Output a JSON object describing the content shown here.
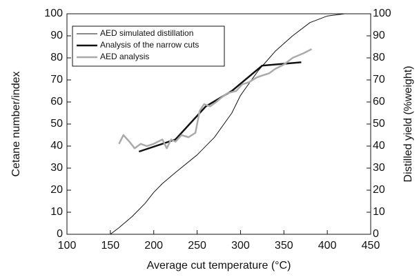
{
  "chart_data": {
    "type": "line",
    "xlabel": "Average cut temperature (°C)",
    "ylabel": "Cetane number/index",
    "y2label": "Distilled yield (%weight)",
    "xlim": [
      100,
      450
    ],
    "xticks": [
      100,
      150,
      200,
      250,
      300,
      350,
      400,
      450
    ],
    "ylim": [
      0,
      100
    ],
    "yticks": [
      0,
      10,
      20,
      30,
      40,
      50,
      60,
      70,
      80,
      90,
      100
    ],
    "y2lim": [
      0,
      100
    ],
    "y2ticks": [
      0,
      10,
      20,
      30,
      40,
      50,
      60,
      70,
      80,
      90,
      100
    ],
    "legend": "upper left",
    "series": [
      {
        "name": "AED simulated distillation",
        "color": "#111111",
        "width": 1,
        "axis": "y2",
        "x": [
          150,
          160,
          175,
          190,
          200,
          210,
          225,
          250,
          270,
          290,
          300,
          320,
          340,
          360,
          380,
          400,
          420
        ],
        "values": [
          0,
          3,
          8,
          14,
          19,
          23,
          28,
          36,
          44,
          55,
          63,
          74,
          83,
          90,
          96,
          99,
          100
        ]
      },
      {
        "name": "Analysis of the narrow cuts",
        "color": "#111111",
        "width": 2.5,
        "x": [
          183,
          225,
          260,
          290,
          325,
          370
        ],
        "values": [
          37.5,
          43,
          58,
          65,
          76.5,
          78
        ]
      },
      {
        "name": "AED analysis",
        "color": "#aaaaaa",
        "width": 2.5,
        "x": [
          160,
          165,
          172,
          178,
          185,
          192,
          200,
          210,
          215,
          220,
          225,
          232,
          240,
          248,
          253,
          258,
          265,
          272,
          278,
          285,
          295,
          302,
          310,
          318,
          325,
          333,
          340,
          350,
          360,
          372,
          382
        ],
        "values": [
          41,
          45,
          42,
          39,
          41,
          40,
          41,
          43,
          39,
          43,
          42,
          45,
          44,
          46,
          56,
          59,
          58,
          60,
          62,
          64,
          65,
          68,
          69,
          71,
          72,
          73,
          75,
          77,
          80,
          82,
          84
        ]
      }
    ]
  }
}
